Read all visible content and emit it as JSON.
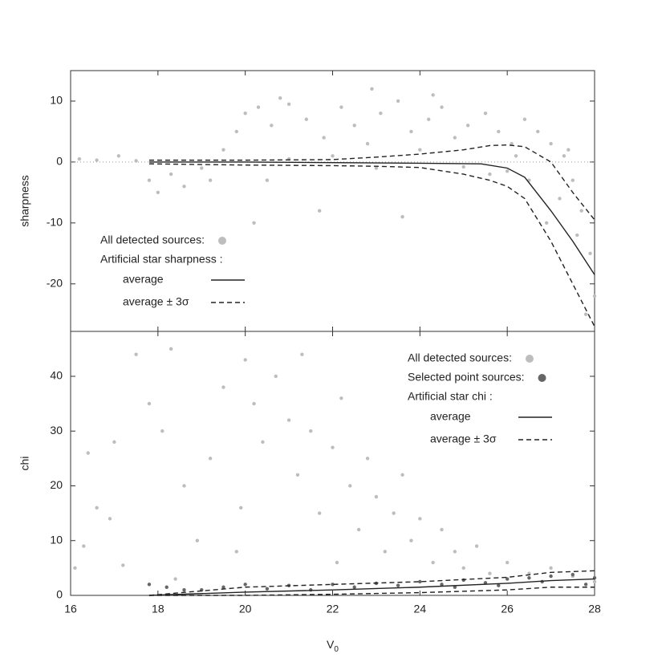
{
  "chart_data": [
    {
      "type": "scatter",
      "ylabel": "sharpness",
      "xlim": [
        16,
        28
      ],
      "ylim": [
        -27.8,
        15
      ],
      "xticks": [
        16,
        18,
        20,
        22,
        24,
        26,
        28
      ],
      "show_xtick_labels": false,
      "yticks": [
        10,
        0,
        -10,
        -20
      ],
      "hline": 0,
      "legend_title": "Artificial star sharpness :",
      "series": [
        {
          "name": "All detected sources:",
          "kind": "points",
          "color": "#bdbdbd",
          "x": [
            16.2,
            16.6,
            17.1,
            17.5,
            17.8,
            18,
            18.3,
            18.6,
            19,
            19.2,
            19.5,
            19.8,
            20,
            20.3,
            20.6,
            21,
            21.4,
            21.8,
            22.2,
            22.5,
            22.8,
            23.1,
            23.5,
            23.8,
            24.2,
            24.5,
            24.8,
            25.1,
            25.5,
            25.8,
            26.1,
            26.4,
            26.7,
            27,
            27.3,
            27.5,
            27.7,
            27.9,
            28,
            27.8,
            27.6,
            27.2,
            26.9,
            26.5,
            26,
            25,
            24,
            23,
            22,
            21,
            20.5,
            20.2,
            21.7,
            23.6,
            25.6,
            26.2,
            27.4,
            24.3,
            22.9,
            20.8
          ],
          "values": [
            0.5,
            0.3,
            1,
            0.2,
            -3,
            -5,
            -2,
            -4,
            -1,
            -3,
            2,
            5,
            8,
            9,
            6,
            9.5,
            7,
            4,
            9,
            6,
            3,
            8,
            10,
            5,
            7,
            9,
            4,
            6,
            8,
            5,
            3,
            7,
            5,
            3,
            1,
            -3,
            -8,
            -15,
            -22,
            -25,
            -12,
            -6,
            -10,
            -3,
            -1.5,
            -0.8,
            2,
            -1,
            1,
            0.5,
            -3,
            -10,
            -8,
            -9,
            -2,
            1,
            2,
            11,
            12,
            10.5
          ]
        },
        {
          "name": "average",
          "kind": "line",
          "color": "#222222",
          "x": [
            17.8,
            20,
            22,
            24,
            25.4,
            26,
            26.4,
            27,
            27.5,
            28
          ],
          "values": [
            0,
            0,
            -0.1,
            -0.2,
            -0.3,
            -1,
            -2.5,
            -8,
            -13,
            -18.5
          ]
        },
        {
          "name": "average ± 3σ",
          "kind": "band",
          "color": "#222222",
          "x": [
            17.8,
            20,
            22,
            23,
            24,
            25,
            25.6,
            26,
            26.4,
            27,
            27.5,
            28
          ],
          "upper": [
            0.3,
            0.3,
            0.4,
            0.8,
            1.3,
            2,
            2.7,
            2.8,
            2.5,
            0,
            -5,
            -9.5
          ],
          "lower": [
            -0.3,
            -0.5,
            -0.6,
            -0.7,
            -0.9,
            -2,
            -3,
            -4,
            -6,
            -13,
            -20,
            -27
          ]
        }
      ]
    },
    {
      "type": "scatter",
      "ylabel": "chi",
      "xlim": [
        16,
        28
      ],
      "ylim": [
        0,
        48.2
      ],
      "xticks": [
        16,
        18,
        20,
        22,
        24,
        26,
        28
      ],
      "show_xtick_labels": true,
      "yticks": [
        0,
        10,
        20,
        30,
        40
      ],
      "xlabel": "V",
      "xlabel_sub": "0",
      "legend_title": "Artificial star chi :",
      "series": [
        {
          "name": "All detected sources:",
          "kind": "points",
          "color": "#bdbdbd",
          "x": [
            16.1,
            16.4,
            16.6,
            16.9,
            17.2,
            17.5,
            17.8,
            18.1,
            18.3,
            18.6,
            18.9,
            19.2,
            19.5,
            19.8,
            20,
            20.2,
            20.4,
            20.7,
            21,
            21.2,
            21.5,
            21.7,
            22,
            22.2,
            22.4,
            22.6,
            22.8,
            23,
            23.2,
            23.4,
            23.6,
            23.8,
            24,
            24.3,
            24.5,
            24.8,
            25,
            25.3,
            25.6,
            26,
            26.5,
            27,
            27.5,
            28,
            21.3,
            19.9,
            22.1,
            18.4,
            17,
            16.3
          ],
          "values": [
            5,
            26,
            16,
            14,
            5.5,
            44,
            35,
            30,
            45,
            20,
            10,
            25,
            38,
            8,
            43,
            35,
            28,
            40,
            32,
            22,
            30,
            15,
            27,
            36,
            20,
            12,
            25,
            18,
            8,
            15,
            22,
            10,
            14,
            6,
            12,
            8,
            5,
            9,
            4,
            6,
            4,
            5,
            3.5,
            2.5,
            44,
            16,
            6,
            3,
            28,
            9
          ]
        },
        {
          "name": "Selected point sources:",
          "kind": "points",
          "color": "#666666",
          "x": [
            17.8,
            18.2,
            18.6,
            19,
            19.5,
            20,
            20.5,
            21,
            21.5,
            22,
            22.5,
            23,
            23.5,
            24,
            24.5,
            25,
            25.5,
            26,
            26.5,
            27,
            27.5,
            28,
            27.8,
            26.8,
            25.8,
            24.8
          ],
          "values": [
            2,
            1.5,
            1,
            1,
            1.5,
            2,
            1.2,
            1.8,
            1,
            2,
            1.5,
            2.2,
            1.8,
            2.5,
            2,
            2.8,
            2.3,
            3,
            3.2,
            3.5,
            3.8,
            3.2,
            2,
            2.5,
            1.8,
            1.5
          ]
        },
        {
          "name": "average",
          "kind": "line",
          "color": "#222222",
          "x": [
            17.8,
            20,
            22,
            24,
            26,
            27,
            28
          ],
          "values": [
            0,
            0.6,
            1,
            1.5,
            2.2,
            2.7,
            3
          ]
        },
        {
          "name": "average ± 3σ",
          "kind": "band",
          "color": "#222222",
          "x": [
            17.8,
            20,
            22,
            24,
            26,
            27,
            28
          ],
          "upper": [
            0,
            1.5,
            2,
            2.5,
            3.3,
            4.2,
            4.5
          ],
          "lower": [
            0,
            0,
            0.2,
            0.5,
            1,
            1.5,
            1.5
          ]
        }
      ]
    }
  ]
}
